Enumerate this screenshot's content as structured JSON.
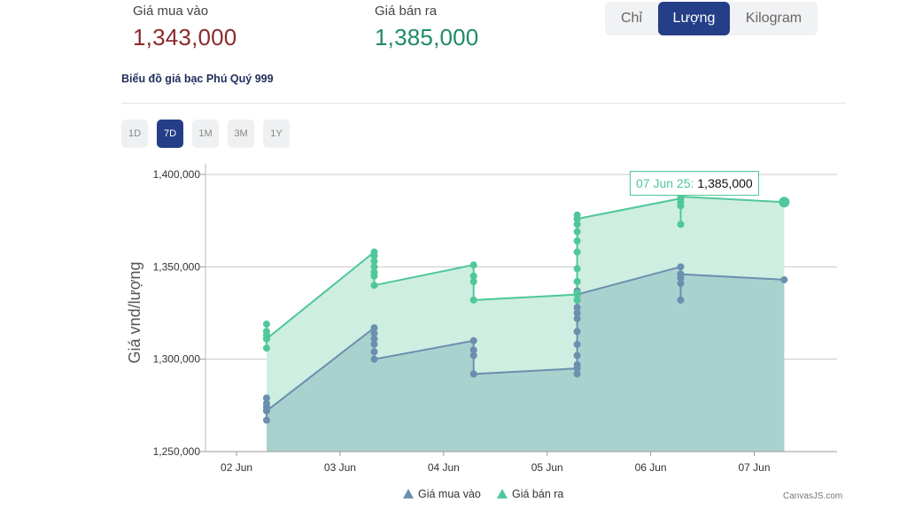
{
  "prices": {
    "buy_label": "Giá mua vào",
    "buy_value": "1,343,000",
    "sell_label": "Giá bán ra",
    "sell_value": "1,385,000"
  },
  "units": {
    "options": [
      "Chỉ",
      "Lượng",
      "Kilogram"
    ],
    "selected": "Lượng"
  },
  "chart_title": "Biểu đồ giá bạc Phú Quý 999",
  "ranges": {
    "options": [
      "1D",
      "7D",
      "1M",
      "3M",
      "1Y"
    ],
    "selected": "7D"
  },
  "tooltip": {
    "date": "07 Jun 25:",
    "value": "1,385,000"
  },
  "credit": "CanvasJS.com",
  "colors": {
    "buy_line": "#6b8fae",
    "buy_fill": "#a9d2cf",
    "sell_line": "#4fc79a",
    "sell_fill": "#cdeee1",
    "accent": "#243f87"
  },
  "chart_data": {
    "type": "area",
    "ylabel": "Giá vnd/lượng",
    "ylim": [
      1250000,
      1400000
    ],
    "yticks": [
      1250000,
      1300000,
      1350000,
      1400000
    ],
    "ytick_labels": [
      "1,250,000",
      "1,300,000",
      "1,350,000",
      "1,400,000"
    ],
    "xlim": [
      1.7,
      7.8
    ],
    "xticks": [
      2,
      3,
      4,
      5,
      6,
      7
    ],
    "xtick_labels": [
      "02 Jun",
      "03 Jun",
      "04 Jun",
      "05 Jun",
      "06 Jun",
      "07 Jun"
    ],
    "legend_position": "bottom",
    "series": [
      {
        "name": "Giá mua vào",
        "points": [
          [
            2.29,
            1267000
          ],
          [
            2.29,
            1272000
          ],
          [
            2.29,
            1274000
          ],
          [
            2.29,
            1276000
          ],
          [
            2.29,
            1279000
          ],
          [
            2.29,
            1272000
          ],
          [
            3.33,
            1317000
          ],
          [
            3.33,
            1314000
          ],
          [
            3.33,
            1311000
          ],
          [
            3.33,
            1308000
          ],
          [
            3.33,
            1304000
          ],
          [
            3.33,
            1300000
          ],
          [
            4.29,
            1310000
          ],
          [
            4.29,
            1305000
          ],
          [
            4.29,
            1302000
          ],
          [
            4.29,
            1292000
          ],
          [
            5.29,
            1295000
          ],
          [
            5.29,
            1292000
          ],
          [
            5.29,
            1297000
          ],
          [
            5.29,
            1302000
          ],
          [
            5.29,
            1308000
          ],
          [
            5.29,
            1315000
          ],
          [
            5.29,
            1322000
          ],
          [
            5.29,
            1325000
          ],
          [
            5.29,
            1328000
          ],
          [
            5.29,
            1332000
          ],
          [
            5.29,
            1335000
          ],
          [
            5.29,
            1337000
          ],
          [
            5.29,
            1335000
          ],
          [
            6.29,
            1350000
          ],
          [
            6.29,
            1346000
          ],
          [
            6.29,
            1344000
          ],
          [
            6.29,
            1341000
          ],
          [
            6.29,
            1332000
          ],
          [
            6.29,
            1346000
          ],
          [
            7.29,
            1343000
          ]
        ]
      },
      {
        "name": "Giá bán ra",
        "points": [
          [
            2.29,
            1306000
          ],
          [
            2.29,
            1311000
          ],
          [
            2.29,
            1313000
          ],
          [
            2.29,
            1315000
          ],
          [
            2.29,
            1319000
          ],
          [
            2.29,
            1311000
          ],
          [
            3.33,
            1358000
          ],
          [
            3.33,
            1356000
          ],
          [
            3.33,
            1353000
          ],
          [
            3.33,
            1350000
          ],
          [
            3.33,
            1347000
          ],
          [
            3.33,
            1345000
          ],
          [
            3.33,
            1340000
          ],
          [
            4.29,
            1351000
          ],
          [
            4.29,
            1345000
          ],
          [
            4.29,
            1342000
          ],
          [
            4.29,
            1332000
          ],
          [
            5.29,
            1335000
          ],
          [
            5.29,
            1332000
          ],
          [
            5.29,
            1336000
          ],
          [
            5.29,
            1342000
          ],
          [
            5.29,
            1349000
          ],
          [
            5.29,
            1358000
          ],
          [
            5.29,
            1364000
          ],
          [
            5.29,
            1369000
          ],
          [
            5.29,
            1373000
          ],
          [
            5.29,
            1376000
          ],
          [
            5.29,
            1378000
          ],
          [
            5.29,
            1376000
          ],
          [
            6.29,
            1387000
          ],
          [
            6.29,
            1385000
          ],
          [
            6.29,
            1383000
          ],
          [
            6.29,
            1373000
          ],
          [
            6.29,
            1388000
          ],
          [
            7.29,
            1385000
          ]
        ]
      }
    ]
  }
}
